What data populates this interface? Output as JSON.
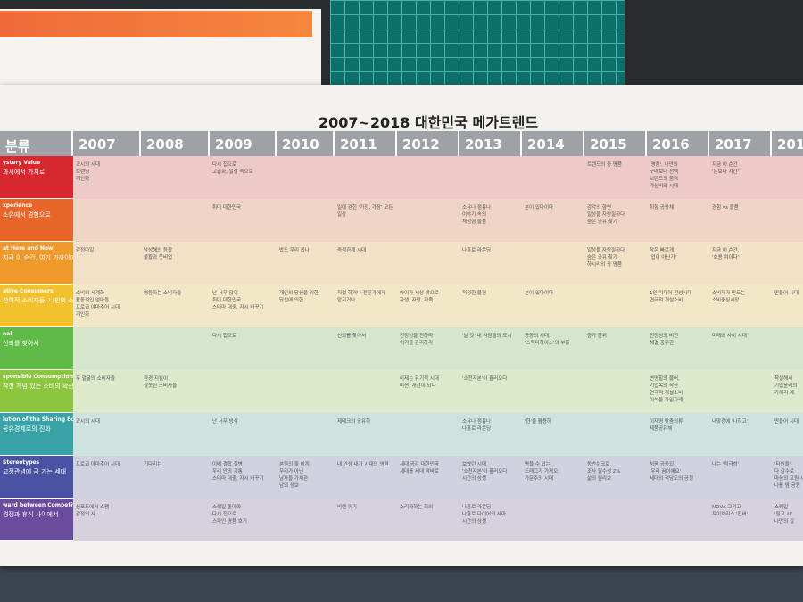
{
  "header": {
    "title": "2007~2018 대한민국 메가트렌드"
  },
  "table": {
    "columns": [
      "분류",
      "2007",
      "2008",
      "2009",
      "2010",
      "2011",
      "2012",
      "2013",
      "2014",
      "2015",
      "2016",
      "2017",
      "201"
    ],
    "rows": [
      {
        "label_en": "ystery Value",
        "label_ko": "과시에서 가치로",
        "cells": [
          [
            "과시의 시대",
            "브랜딩",
            "개인화"
          ],
          null,
          [
            "다시 집으로",
            "고급화, 일상 속으로"
          ],
          null,
          null,
          null,
          null,
          null,
          [
            "트렌드의 중 명품"
          ],
          [
            "'명품', 나만의",
            "구매보다 선택",
            "브랜드의 품격",
            "가심비의 시대"
          ],
          [
            "지금 이 순간",
            "'돈보다 시간'"
          ],
          null
        ]
      },
      {
        "label_en": "xperience",
        "label_ko": "소유에서 경험으로",
        "cells": [
          null,
          null,
          [
            "취미 대한민국"
          ],
          null,
          [
            "일에 갇힌 '가정, 가장' 모든",
            "일상"
          ],
          null,
          [
            "소유나 점유나",
            "이야기 속의",
            "체험형 물품"
          ],
          [
            "분이 있다이다"
          ],
          [
            "감각의 향연",
            "일상을 자랑질하다",
            "숨은 공유 찾기"
          ],
          [
            "취향 공동체"
          ],
          [
            "경험 vs 물품"
          ],
          null
        ]
      },
      {
        "label_en": "at Here and Now",
        "label_ko": "지금 이 순간, 여기 가까이에",
        "cells": [
          [
            "감정마일"
          ],
          [
            "남성해의 등장",
            "불황과 웃비업"
          ],
          null,
          [
            "밥도 우리 옵나"
          ],
          [
            "즉석관계 시대"
          ],
          null,
          [
            "나홀로 라운딩"
          ],
          null,
          [
            "일상을 자랑질하다",
            "숨은 공유 찾기",
            "하시리의 공 명품"
          ],
          [
            "작은 빠르게,",
            "'업이 아닌가'"
          ],
          [
            "지금 이 순간,",
            "'효용 여이다'"
          ],
          null
        ]
      },
      {
        "label_en": "ative Consumers",
        "label_ko": "참여적 소비자들, 나만의 소비시장",
        "cells": [
          [
            "소비의 세계화",
            "활동적인 엄마들",
            "프로급 아마추어 시대",
            "개인화"
          ],
          [
            "영등하는 소비자들"
          ],
          [
            "난 너무 많이",
            "취미 대한민국",
            "스티마 대중, 자시 바꾸기"
          ],
          [
            "개인의 당신을 위한",
            "당신에 의한"
          ],
          [
            "직접 하거나 전문가에게",
            "맡기거나"
          ],
          [
            "아이가 세상 밖으로",
            "자생, 자랑, 자족"
          ],
          [
            "적정한 불편"
          ],
          [
            "분이 있다이다"
          ],
          null,
          [
            "1인 미디어 전성시대",
            "연극적 개설소비"
          ],
          [
            "소비자가 만드는",
            "소비중심시장"
          ],
          [
            "만들어 시대"
          ]
        ]
      },
      {
        "label_en": "nal",
        "label_ko": "신뢰를 찾아서",
        "cells": [
          null,
          null,
          [
            "다시 집으로"
          ],
          null,
          [
            "신뢰를 찾아서"
          ],
          [
            "진정성을 전하라",
            "위기를 관리하라"
          ],
          [
            "'날 것' 내 사람들의 도시"
          ],
          [
            "공동의 시대,",
            "'스펙터하이스'의 부흥"
          ],
          [
            "중가 품위"
          ],
          [
            "진정성의 비전",
            "해결 중무관"
          ],
          [
            "미래와 사이 시대"
          ],
          null
        ]
      },
      {
        "label_en": "sponsible Consumption",
        "label_ko": "착한 개념 있는 소비의 확산",
        "cells": [
          [
            "두 얼굴의 소비자들"
          ],
          [
            "환경 지킴이",
            "잘못한 소비자들"
          ],
          null,
          null,
          null,
          [
            "이제는 유기적 시대",
            "미션, 개선이 되다"
          ],
          [
            "'소전자본'이 흘러오다"
          ],
          null,
          null,
          [
            "변명할의 물어,",
            "기업목의 착한",
            "연극적 개설소비",
            "이석을 가입자레"
          ],
          null,
          [
            "착실해서",
            "기업윤리의",
            "가이리 계"
          ]
        ]
      },
      {
        "label_en": "lution of the Sharing Economy",
        "label_ko": "공유경제로의 진화",
        "cells": [
          [
            "과시의 시대"
          ],
          null,
          [
            "난 너무 방식"
          ],
          null,
          [
            "제테크의 공유하"
          ],
          null,
          [
            "소유나 점유나",
            "나홀로 라운딩"
          ],
          [
            "'한'을 활용하"
          ],
          null,
          [
            "이재명 맞춤의류",
            "제품공유체"
          ],
          [
            "내맞경에 '나하고'"
          ],
          [
            "만들어 시대"
          ]
        ]
      },
      {
        "label_en": "Stereotypes",
        "label_ko": "고정관념에 금 가는 세대",
        "cells": [
          [
            "프로급 아마추어 시대"
          ],
          [
            "기다리는"
          ],
          [
            "이배 결합 질병",
            "우리 안의 기통",
            "스티마 대중, 자시 바꾸기"
          ],
          [
            "분원의 둘 이끼",
            "우리가 아닌",
            "남자들 가치관",
            "남의 생보"
          ],
          [
            "내 인생 내가 시대의 영원"
          ],
          [
            "세대 공감 대한민국",
            "세대를 세대 떡바로"
          ],
          [
            "보였던 시대",
            "'소전자본'이 흘러오다",
            "시간의 상생"
          ],
          [
            "명을 수 있는",
            "드래그가 가져오",
            "가문주의 시대"
          ],
          [
            "동반쉬크로",
            "조사 필수성 2%",
            "삶의 원리보"
          ],
          [
            "처음 공동되",
            "'우리 꿈이에요'",
            "세대의 적당도의 공정"
          ],
          [
            "나는 '적극성'"
          ],
          [
            "'타인을'",
            "다 갈수로",
            "마음의 고원 시대",
            "나를 밤 공원"
          ]
        ]
      },
      {
        "label_en": "ward between Competition and Relaxation",
        "label_ko": "경쟁과 휴식 사이에서",
        "cells": [
          [
            "신포도에서 스팸",
            "감정의 사"
          ],
          null,
          [
            "스퀘일 돌아와",
            "다시 집으로",
            "스파인 명품 호기"
          ],
          null,
          [
            "비랜 위기"
          ],
          [
            "소리화하는 회의"
          ],
          [
            "나홀로 라운딩",
            "나홀로 다이어의 사마",
            "시간의 상생"
          ],
          null,
          null,
          null,
          [
            "NOVA 그리고",
            "자이브리스 '컨버'"
          ],
          [
            "스퀘일",
            "'필교 시'",
            "나만의 길"
          ]
        ]
      }
    ]
  }
}
